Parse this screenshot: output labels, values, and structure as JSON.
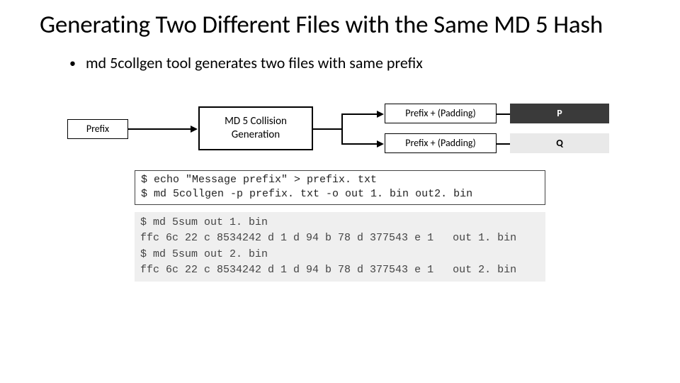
{
  "title": "Generating Two Different Files with the Same MD 5 Hash",
  "bullet": {
    "dot": "•",
    "text": "md 5collgen tool generates two files with same prefix"
  },
  "diagram": {
    "prefix_label": "Prefix",
    "gen_label": "MD 5 Collision\nGeneration",
    "pp1_label": "Prefix  + (Padding)",
    "pp2_label": "Prefix  + (Padding)",
    "p_label": "P",
    "q_label": "Q",
    "box_border_color": "#000000",
    "p_bg": "#3a3a3a",
    "p_fg": "#ffffff",
    "q_bg": "#e9e9e9",
    "q_fg": "#000000"
  },
  "code_block_1": [
    "$ echo \"Message prefix\" > prefix. txt",
    "$ md 5collgen -p prefix. txt -o out 1. bin out2. bin"
  ],
  "code_block_2": [
    "$ md 5sum out 1. bin",
    "ffc 6c 22 c 8534242 d 1 d 94 b 78 d 377543 e 1   out 1. bin",
    "$ md 5sum out 2. bin",
    "ffc 6c 22 c 8534242 d 1 d 94 b 78 d 377543 e 1   out 2. bin"
  ],
  "colors": {
    "background": "#ffffff",
    "text": "#000000",
    "code2_bg": "#efefef",
    "code_border": "#444444"
  },
  "fonts": {
    "title_size_pt": 28,
    "body_size_pt": 18,
    "code_size_pt": 12,
    "code_family": "Courier New"
  }
}
